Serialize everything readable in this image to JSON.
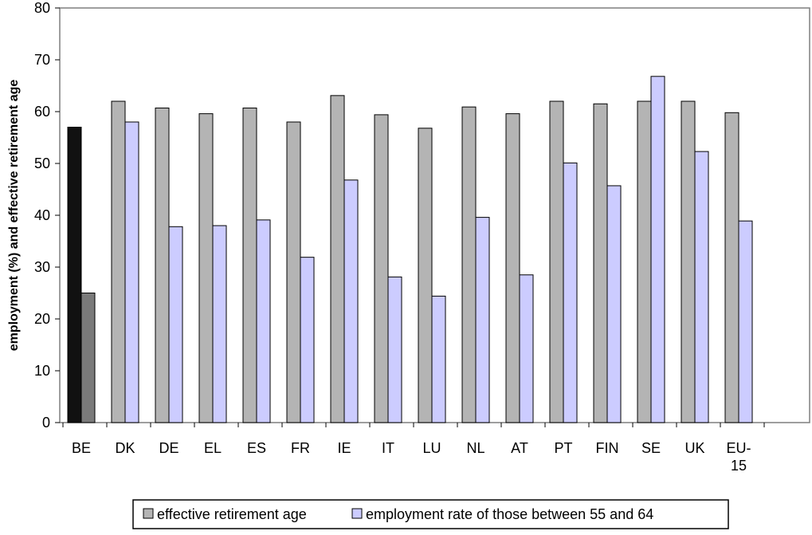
{
  "chart_data": {
    "type": "bar",
    "title": "",
    "xlabel": "",
    "ylabel": "employment (%) and effective retirement age",
    "ylim": [
      0,
      80
    ],
    "yticks": [
      0,
      10,
      20,
      30,
      40,
      50,
      60,
      70,
      80
    ],
    "categories": [
      "BE",
      "DK",
      "DE",
      "EL",
      "ES",
      "FR",
      "IE",
      "IT",
      "LU",
      "NL",
      "AT",
      "PT",
      "FIN",
      "SE",
      "UK",
      "EU-15"
    ],
    "category_lines": [
      [
        "BE"
      ],
      [
        "DK"
      ],
      [
        "DE"
      ],
      [
        "EL"
      ],
      [
        "ES"
      ],
      [
        "FR"
      ],
      [
        "IE"
      ],
      [
        "IT"
      ],
      [
        "LU"
      ],
      [
        "NL"
      ],
      [
        "AT"
      ],
      [
        "PT"
      ],
      [
        "FIN"
      ],
      [
        "SE"
      ],
      [
        "UK"
      ],
      [
        "EU-",
        "15"
      ]
    ],
    "series": [
      {
        "name": "effective retirement age",
        "color": "#b4b4b4",
        "values": [
          57,
          62,
          60.7,
          59.6,
          60.7,
          58,
          63.1,
          59.4,
          56.8,
          60.9,
          59.6,
          62,
          61.5,
          62,
          62,
          59.8
        ]
      },
      {
        "name": "employment rate of those between 55 and 64",
        "color": "#ccccff",
        "values": [
          25,
          58,
          37.8,
          38,
          39.1,
          31.9,
          46.8,
          28.1,
          24.4,
          39.6,
          28.5,
          50.1,
          45.7,
          66.8,
          52.3,
          38.9
        ]
      }
    ],
    "highlight": {
      "category": "BE",
      "colors": [
        "#111111",
        "#7a7a7a"
      ]
    },
    "grid": false,
    "legend_position": "bottom"
  }
}
